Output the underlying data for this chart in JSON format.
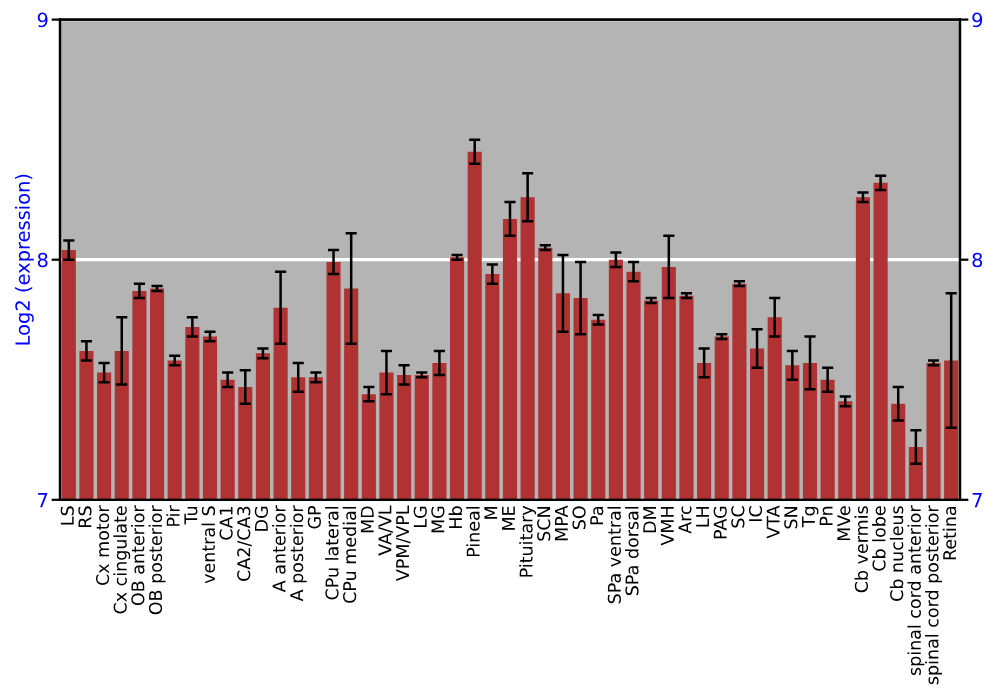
{
  "chart_data": {
    "type": "bar",
    "ylabel": "Log2 (expression)",
    "categories": [
      "LS",
      "RS",
      "Cx motor",
      "Cx cingulate",
      "OB anterior",
      "OB posterior",
      "Pir",
      "Tu",
      "ventral S",
      "CA1",
      "CA2/CA3",
      "DG",
      "A anterior",
      "A posterior",
      "GP",
      "CPu lateral",
      "CPu medial",
      "MD",
      "VA/VL",
      "VPM/VPL",
      "LG",
      "MG",
      "Hb",
      "Pineal",
      "M",
      "ME",
      "Pituitary",
      "SCN",
      "MPA",
      "SO",
      "Pa",
      "SPa ventral",
      "SPa dorsal",
      "DM",
      "VMH",
      "Arc",
      "LH",
      "PAG",
      "SC",
      "IC",
      "VTA",
      "SN",
      "Tg",
      "Pn",
      "MVe",
      "Cb vermis",
      "Cb lobe",
      "Cb nucleus",
      "spinal cord anterior",
      "spinal cord posterior",
      "Retina"
    ],
    "values": [
      8.04,
      7.62,
      7.53,
      7.62,
      7.87,
      7.88,
      7.58,
      7.72,
      7.68,
      7.5,
      7.47,
      7.61,
      7.8,
      7.51,
      7.51,
      7.99,
      7.88,
      7.44,
      7.53,
      7.52,
      7.52,
      7.57,
      8.01,
      8.45,
      7.94,
      8.17,
      8.26,
      8.05,
      7.86,
      7.84,
      7.75,
      8.0,
      7.95,
      7.83,
      7.97,
      7.85,
      7.57,
      7.68,
      7.9,
      7.63,
      7.76,
      7.56,
      7.57,
      7.5,
      7.41,
      8.26,
      8.32,
      7.4,
      7.22,
      7.57,
      7.58
    ],
    "errors": [
      0.04,
      0.04,
      0.04,
      0.14,
      0.03,
      0.01,
      0.02,
      0.04,
      0.02,
      0.03,
      0.07,
      0.02,
      0.15,
      0.06,
      0.02,
      0.05,
      0.23,
      0.03,
      0.09,
      0.04,
      0.01,
      0.05,
      0.01,
      0.05,
      0.04,
      0.07,
      0.1,
      0.01,
      0.16,
      0.15,
      0.02,
      0.03,
      0.04,
      0.01,
      0.13,
      0.01,
      0.06,
      0.01,
      0.01,
      0.08,
      0.08,
      0.06,
      0.11,
      0.05,
      0.02,
      0.02,
      0.03,
      0.07,
      0.07,
      0.01,
      0.28
    ],
    "color": "#b03232",
    "ylim": [
      7,
      9
    ],
    "yticks": [
      7,
      8,
      9
    ],
    "y2lim": [
      7,
      9
    ],
    "y2ticks": [
      7,
      8,
      9
    ],
    "grid": "y"
  }
}
